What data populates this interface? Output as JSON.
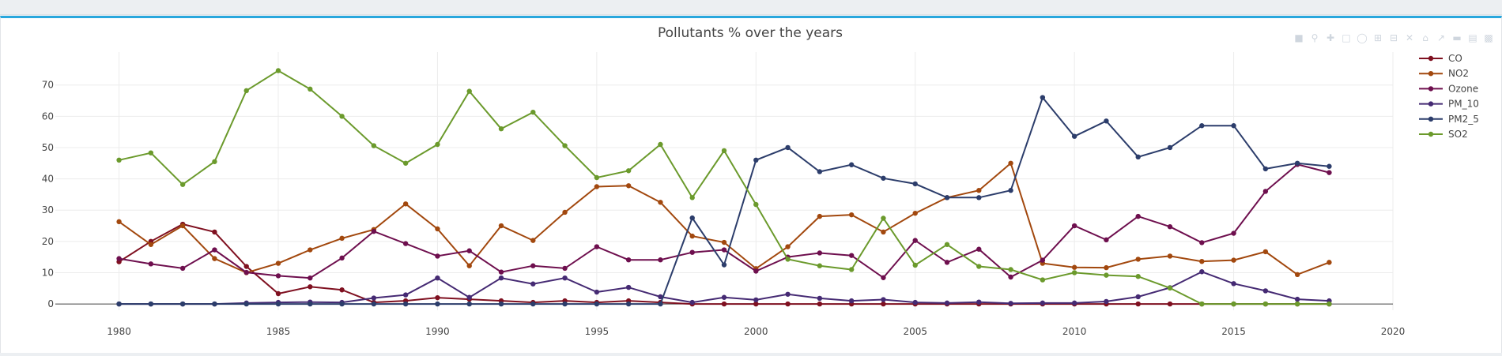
{
  "chart_data": {
    "type": "line",
    "title": "Pollutants % over the years",
    "xlabel": "",
    "ylabel": "",
    "xlim": [
      1978,
      2020
    ],
    "ylim": [
      -2,
      78
    ],
    "x_ticks": [
      1980,
      1985,
      1990,
      1995,
      2000,
      2005,
      2010,
      2015,
      2020
    ],
    "y_ticks": [
      0,
      10,
      20,
      30,
      40,
      50,
      60,
      70
    ],
    "grid": true,
    "legend_position": "top-right",
    "x": [
      1980,
      1981,
      1982,
      1983,
      1984,
      1985,
      1986,
      1987,
      1988,
      1989,
      1990,
      1991,
      1992,
      1993,
      1994,
      1995,
      1996,
      1997,
      1998,
      1999,
      2000,
      2001,
      2002,
      2003,
      2004,
      2005,
      2006,
      2007,
      2008,
      2009,
      2010,
      2011,
      2012,
      2013,
      2014,
      2015,
      2016,
      2017,
      2018
    ],
    "series": [
      {
        "name": "CO",
        "color": "#7f1020",
        "values": [
          13.5,
          20,
          25.5,
          23,
          12,
          3.3,
          5.5,
          4.5,
          0.5,
          1,
          2,
          1.5,
          1,
          0.5,
          1,
          0.5,
          1,
          0.5,
          0,
          0,
          0,
          0,
          0,
          0,
          0,
          0,
          0,
          0,
          0,
          0,
          0,
          0,
          0,
          0,
          0,
          0,
          0,
          0,
          0
        ]
      },
      {
        "name": "NO2",
        "color": "#a2480e",
        "values": [
          26.3,
          19,
          25,
          14.5,
          10,
          13,
          17.3,
          21,
          23.8,
          32,
          24,
          12.2,
          25,
          20.3,
          29.3,
          37.5,
          37.8,
          32.5,
          21.7,
          19.7,
          11.3,
          18.3,
          28,
          28.5,
          23,
          29,
          34,
          36.3,
          45,
          13,
          11.7,
          11.6,
          14.3,
          15.3,
          13.6,
          14,
          16.7,
          9.4,
          13.3
        ]
      },
      {
        "name": "Ozone",
        "color": "#6e0f4e",
        "values": [
          14.5,
          12.8,
          11.4,
          17.3,
          10.1,
          9,
          8.3,
          14.7,
          23.2,
          19.3,
          15.3,
          17,
          10.2,
          12.2,
          11.4,
          18.3,
          14.1,
          14.1,
          16.5,
          17.3,
          10.5,
          15,
          16.3,
          15.5,
          8.4,
          20.3,
          13.3,
          17.5,
          8.6,
          14,
          25,
          20.5,
          28,
          24.7,
          19.6,
          22.6,
          36,
          44.6,
          42
        ]
      },
      {
        "name": "PM_10",
        "color": "#452a73",
        "values": [
          0,
          0,
          0,
          0,
          0.3,
          0.5,
          0.6,
          0.5,
          1.9,
          2.9,
          8.3,
          2.1,
          8.3,
          6.4,
          8.3,
          3.8,
          5.3,
          2.3,
          0.5,
          2.1,
          1.3,
          3.1,
          1.8,
          1,
          1.4,
          0.5,
          0.3,
          0.6,
          0.2,
          0.3,
          0.3,
          0.8,
          2.3,
          5.2,
          10.3,
          6.5,
          4.2,
          1.5,
          1
        ]
      },
      {
        "name": "PM2_5",
        "color": "#2c3d6b",
        "values": [
          0,
          0,
          0,
          0,
          0,
          0,
          0,
          0,
          0,
          0,
          0,
          0,
          0,
          0,
          0,
          0,
          0,
          0,
          27.5,
          12.5,
          46,
          50,
          42.3,
          44.5,
          40.2,
          38.4,
          34,
          34,
          36.3,
          66,
          53.6,
          58.5,
          47,
          50,
          57,
          57,
          43.2,
          45,
          44
        ]
      },
      {
        "name": "SO2",
        "color": "#6b9a2c",
        "values": [
          46,
          48.3,
          38.2,
          45.5,
          68.2,
          74.6,
          68.7,
          60,
          50.6,
          45,
          51,
          68,
          56,
          61.3,
          50.6,
          40.4,
          42.6,
          51,
          34,
          49,
          31.8,
          14.3,
          12.2,
          11,
          27.4,
          12.4,
          19,
          12,
          11,
          7.7,
          10,
          9.2,
          8.8,
          5.1,
          0,
          0,
          0,
          0,
          0
        ]
      }
    ]
  }
}
